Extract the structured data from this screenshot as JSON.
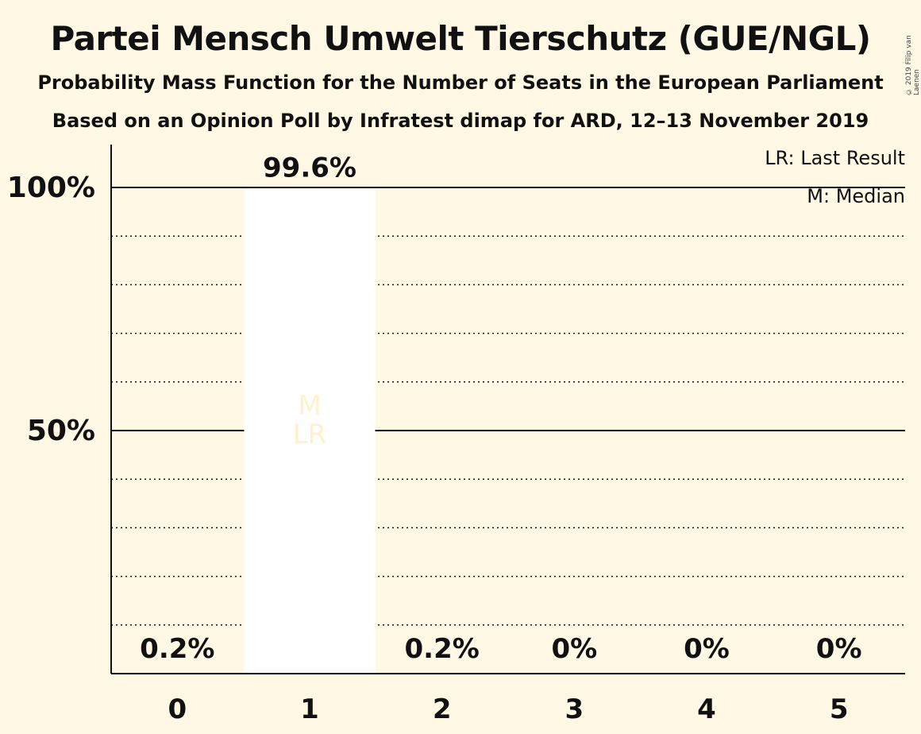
{
  "title": "Partei Mensch Umwelt Tierschutz (GUE/NGL)",
  "subtitle1": "Probability Mass Function for the Number of Seats in the European Parliament",
  "subtitle2": "Based on an Opinion Poll by Infratest dimap for ARD, 12–13 November 2019",
  "copyright": "© 2019 Filip van Laenen",
  "legend": {
    "last_result": "LR: Last Result",
    "median": "M: Median"
  },
  "colors": {
    "background": "#FFF8E4",
    "bar": "#FFFFFF",
    "marker_text": "#FFF1CC",
    "text": "#111111"
  },
  "chart_data": {
    "type": "bar",
    "categories": [
      "0",
      "1",
      "2",
      "3",
      "4",
      "5"
    ],
    "values": [
      0.2,
      99.6,
      0.2,
      0,
      0,
      0
    ],
    "value_labels": [
      "0.2%",
      "99.6%",
      "0.2%",
      "0%",
      "0%",
      "0%"
    ],
    "ylim": [
      0,
      100
    ],
    "yticks": [
      {
        "value": 50,
        "label": "50%"
      },
      {
        "value": 100,
        "label": "100%"
      }
    ],
    "minor_gridlines": [
      10,
      20,
      30,
      40,
      60,
      70,
      80,
      90
    ],
    "median_category": "1",
    "last_result_category": "1",
    "median_marker": "M",
    "last_result_marker": "LR"
  }
}
